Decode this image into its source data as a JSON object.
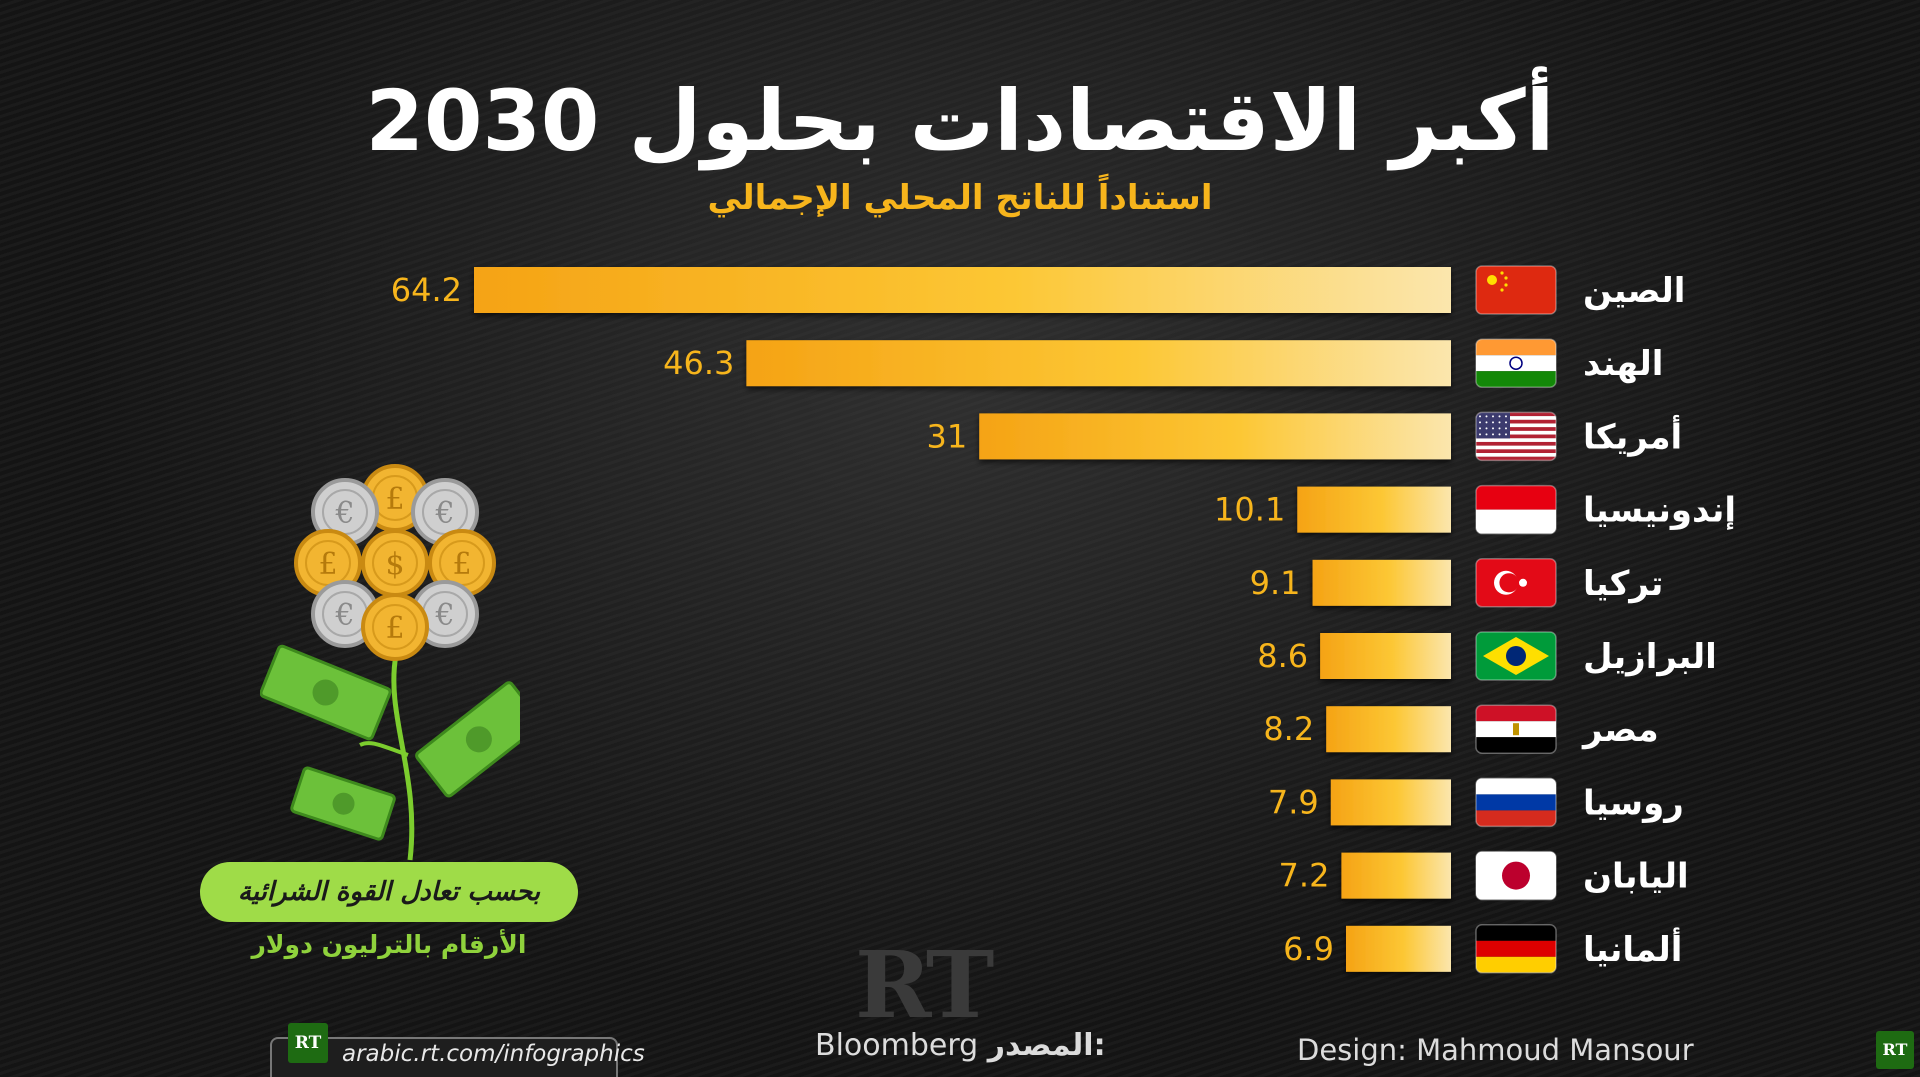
{
  "title": "أكبر الاقتصادات بحلول 2030",
  "subtitle": "استناداً للناتج المحلي الإجمالي",
  "chart_data": {
    "type": "bar",
    "orientation": "horizontal",
    "title": "أكبر الاقتصادات بحلول 2030",
    "subtitle": "استناداً للناتج المحلي الإجمالي",
    "categories": [
      "الصين",
      "الهند",
      "أمريكا",
      "إندونيسيا",
      "تركيا",
      "البرازيل",
      "مصر",
      "روسيا",
      "اليابان",
      "ألمانيا"
    ],
    "values": [
      64.2,
      46.3,
      31,
      10.1,
      9.1,
      8.6,
      8.2,
      7.9,
      7.2,
      6.9
    ],
    "value_labels": [
      "64.2",
      "46.3",
      "31",
      "10.1",
      "9.1",
      "8.6",
      "8.2",
      "7.9",
      "7.2",
      "6.9"
    ],
    "flags": [
      "china-flag-icon",
      "india-flag-icon",
      "usa-flag-icon",
      "indonesia-flag-icon",
      "turkey-flag-icon",
      "brazil-flag-icon",
      "egypt-flag-icon",
      "russia-flag-icon",
      "japan-flag-icon",
      "germany-flag-icon"
    ],
    "bar_color_start": "#f5a315",
    "bar_color_end": "#fbe4a4",
    "grid": false,
    "legend": "none"
  },
  "notes": {
    "basis": "بحسب تعادل القوة الشرائية",
    "units": "الأرقام بالترليون دولار"
  },
  "footer": {
    "source_label": "المصدر:",
    "source_name": "Bloomberg",
    "design": "Design: Mahmoud Mansour",
    "url": "arabic.rt.com/infographics",
    "logo_text": "RT",
    "watermark": "RT"
  },
  "colors": {
    "accent": "#f7b51c",
    "green": "#9fdc48",
    "background": "#151515"
  }
}
